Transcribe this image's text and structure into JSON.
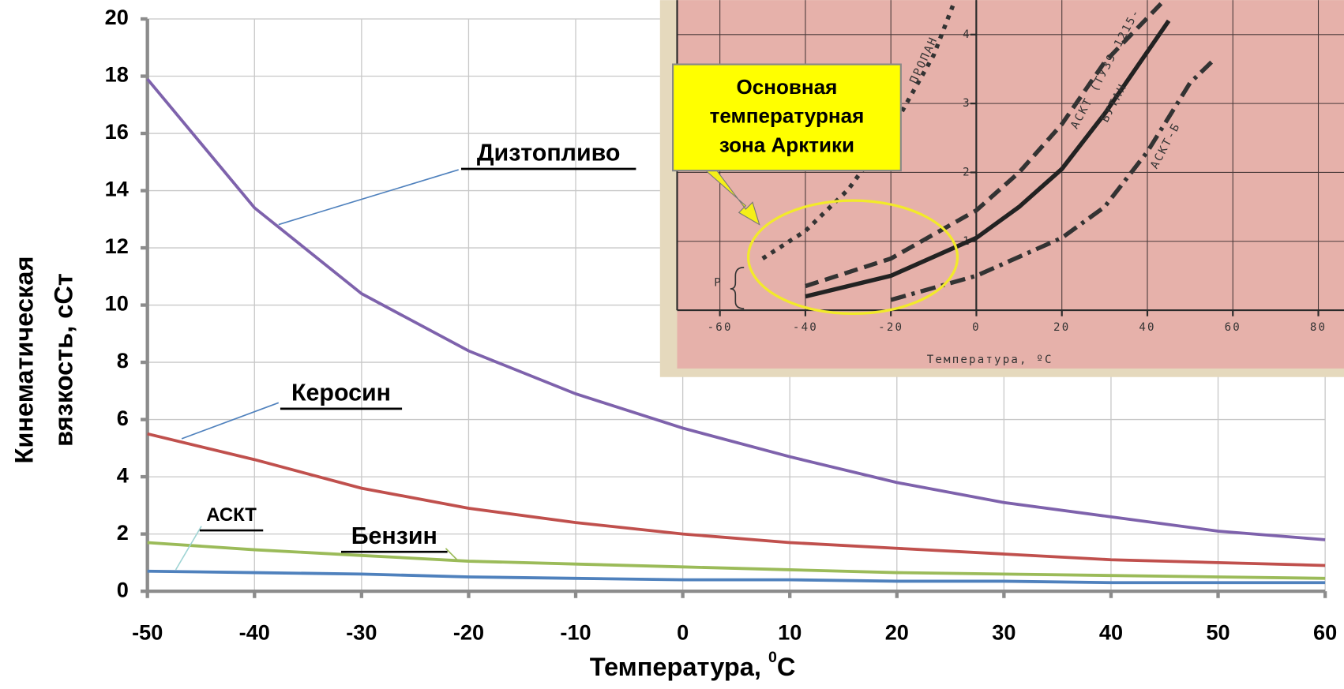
{
  "chart_data": [
    {
      "type": "line",
      "ylabel": [
        "Кинематическая",
        "вязкость, сСт"
      ],
      "xlabel": {
        "text": "Температура, ",
        "sup": "0",
        "unit": "C"
      },
      "x": [
        -50,
        -40,
        -30,
        -20,
        -10,
        0,
        10,
        20,
        30,
        40,
        50,
        60
      ],
      "xlim": [
        -50,
        60
      ],
      "xticks": [
        -50,
        -40,
        -30,
        -20,
        -10,
        0,
        10,
        20,
        30,
        40,
        50,
        60
      ],
      "ylim": [
        0,
        20
      ],
      "yticks": [
        0,
        2,
        4,
        6,
        8,
        10,
        12,
        14,
        16,
        18,
        20
      ],
      "grid": true,
      "series": [
        {
          "name": "Дизтопливо",
          "color": "#7e62ac",
          "values": [
            17.9,
            13.4,
            10.4,
            8.4,
            6.9,
            5.7,
            4.7,
            3.8,
            3.1,
            2.6,
            2.1,
            1.8
          ]
        },
        {
          "name": "Керосин",
          "color": "#c0504d",
          "values": [
            5.5,
            4.6,
            3.6,
            2.9,
            2.4,
            2.0,
            1.7,
            1.5,
            1.3,
            1.1,
            1.0,
            0.9
          ]
        },
        {
          "name": "Бензин",
          "color": "#9bbb59",
          "values": [
            1.7,
            1.45,
            1.25,
            1.05,
            0.95,
            0.85,
            0.75,
            0.65,
            0.6,
            0.55,
            0.5,
            0.45
          ]
        },
        {
          "name": "АСКТ",
          "color": "#4f81bd",
          "values": [
            0.7,
            0.65,
            0.6,
            0.5,
            0.45,
            0.4,
            0.4,
            0.35,
            0.35,
            0.3,
            0.3,
            0.3
          ]
        }
      ]
    },
    {
      "type": "line",
      "xlabel": "Температура, ºС",
      "ylabel": "P",
      "annotation": [
        "Основная",
        "температурная",
        "зона Арктики"
      ],
      "xlim": [
        -70,
        86
      ],
      "xticks": [
        -60,
        -40,
        -20,
        0,
        20,
        40,
        60,
        80
      ],
      "ylim": [
        0,
        4.5
      ],
      "yticks": [
        1,
        2,
        3,
        4
      ],
      "grid": true,
      "series": [
        {
          "name": "ПРОПАН",
          "color": "#333333",
          "dash": "dotted",
          "x": [
            -50,
            -40,
            -30,
            -20,
            -10,
            -5
          ],
          "values": [
            0.75,
            1.15,
            1.75,
            2.6,
            3.7,
            4.5
          ]
        },
        {
          "name": "АСКТ (ТУ39-1215-",
          "color": "#333333",
          "dash": "dashed",
          "x": [
            -40,
            -20,
            0,
            10,
            20,
            30,
            44
          ],
          "values": [
            0.35,
            0.75,
            1.45,
            2.0,
            2.7,
            3.6,
            4.5
          ]
        },
        {
          "name": "БУТАН",
          "color": "#222222",
          "dash": "solid",
          "x": [
            -40,
            -20,
            0,
            10,
            20,
            30,
            45
          ],
          "values": [
            0.2,
            0.5,
            1.05,
            1.5,
            2.05,
            2.85,
            4.2
          ]
        },
        {
          "name": "АСКТ-Б",
          "color": "#333333",
          "dash": "dashdot",
          "x": [
            -20,
            0,
            20,
            30,
            40,
            50,
            55
          ],
          "values": [
            0.15,
            0.5,
            1.05,
            1.5,
            2.3,
            3.3,
            3.6
          ]
        }
      ]
    }
  ]
}
